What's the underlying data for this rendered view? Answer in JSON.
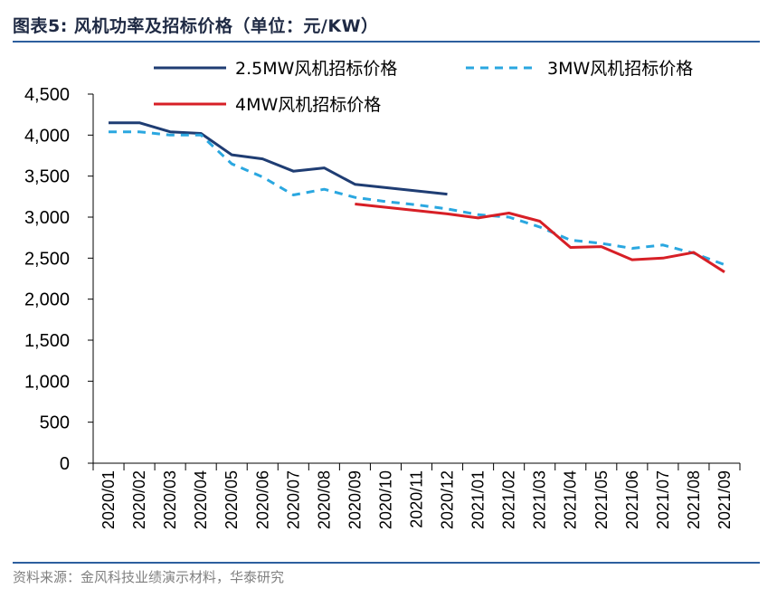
{
  "figure": {
    "title": "图表5:   风机功率及招标价格（单位：元/KW）",
    "source": "资料来源：金风科技业绩演示材料，华泰研究"
  },
  "colors": {
    "rule": "#2d5f9e",
    "axis": "#000000"
  },
  "chart_data": {
    "type": "line",
    "title": "",
    "xlabel": "",
    "ylabel": "",
    "ylim": [
      0,
      4500
    ],
    "yticks": [
      0,
      500,
      1000,
      1500,
      2000,
      2500,
      3000,
      3500,
      4000,
      4500
    ],
    "ytick_labels": [
      "0",
      "500",
      "1,000",
      "1,500",
      "2,000",
      "2,500",
      "3,000",
      "3,500",
      "4,000",
      "4,500"
    ],
    "grid": false,
    "legend_position": "top",
    "categories": [
      "2020/01",
      "2020/02",
      "2020/03",
      "2020/04",
      "2020/05",
      "2020/06",
      "2020/07",
      "2020/08",
      "2020/09",
      "2020/10",
      "2020/11",
      "2020/12",
      "2021/01",
      "2021/02",
      "2021/03",
      "2021/04",
      "2021/05",
      "2021/06",
      "2021/07",
      "2021/08",
      "2021/09"
    ],
    "series": [
      {
        "name": "2.5MW风机招标价格",
        "color": "#1f3d73",
        "style": "solid",
        "values": [
          4150,
          4150,
          4040,
          4020,
          3760,
          3710,
          3560,
          3600,
          3400,
          3360,
          3320,
          3280,
          null,
          null,
          null,
          null,
          null,
          null,
          null,
          null,
          null
        ]
      },
      {
        "name": "3MW风机招标价格",
        "color": "#2aa7e0",
        "style": "dashed",
        "values": [
          4040,
          4040,
          4000,
          4000,
          3650,
          3490,
          3270,
          3340,
          3240,
          3190,
          3150,
          3100,
          3030,
          3000,
          2880,
          2720,
          2680,
          2620,
          2660,
          2560,
          2420
        ]
      },
      {
        "name": "4MW风机招标价格",
        "color": "#d71f26",
        "style": "solid",
        "values": [
          null,
          null,
          null,
          null,
          null,
          null,
          null,
          null,
          3160,
          3120,
          3080,
          3040,
          2990,
          3050,
          2950,
          2630,
          2640,
          2480,
          2500,
          2570,
          2330
        ]
      }
    ]
  }
}
